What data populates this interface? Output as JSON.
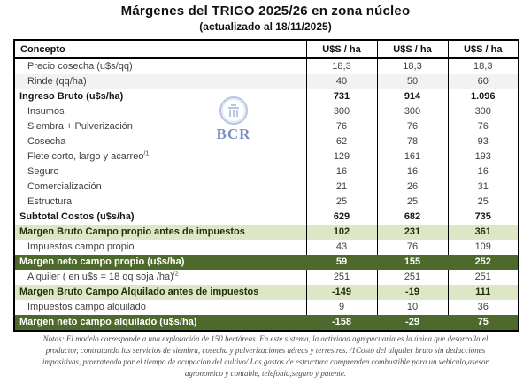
{
  "title": "Márgenes del TRIGO 2025/26 en zona núcleo",
  "subtitle": "(actualizado al 18/11/2025)",
  "watermark": {
    "text": "BCR"
  },
  "colors": {
    "dark_green_row": "#4e692c",
    "light_green_row": "#dde7c6",
    "shaded_row": "#f2f2f2",
    "watermark_blue": "#33549c"
  },
  "table": {
    "header": {
      "concept": "Concepto",
      "cols": [
        "U$S / ha",
        "U$S / ha",
        "U$S / ha"
      ]
    },
    "rows": [
      {
        "label": "Precio cosecha (u$s/qq)",
        "values": [
          "18,3",
          "18,3",
          "18,3"
        ],
        "style": "normal",
        "indent": true
      },
      {
        "label": "Rinde (qq/ha)",
        "values": [
          "40",
          "50",
          "60"
        ],
        "style": "shaded",
        "indent": true
      },
      {
        "label": "Ingreso Bruto (u$s/ha)",
        "values": [
          "731",
          "914",
          "1.096"
        ],
        "style": "bold",
        "indent": false
      },
      {
        "label": "Insumos",
        "values": [
          "300",
          "300",
          "300"
        ],
        "style": "normal",
        "indent": true
      },
      {
        "label": "Siembra + Pulverización",
        "values": [
          "76",
          "76",
          "76"
        ],
        "style": "normal",
        "indent": true
      },
      {
        "label": "Cosecha",
        "values": [
          "62",
          "78",
          "93"
        ],
        "style": "normal",
        "indent": true
      },
      {
        "label": "Flete corto, largo y acarreo",
        "sup": "/1",
        "values": [
          "129",
          "161",
          "193"
        ],
        "style": "normal",
        "indent": true
      },
      {
        "label": "Seguro",
        "values": [
          "16",
          "16",
          "16"
        ],
        "style": "normal",
        "indent": true
      },
      {
        "label": "Comercialización",
        "values": [
          "21",
          "26",
          "31"
        ],
        "style": "normal",
        "indent": true
      },
      {
        "label": "Estructura",
        "values": [
          "25",
          "25",
          "25"
        ],
        "style": "normal",
        "indent": true
      },
      {
        "label": "Subtotal Costos (u$s/ha)",
        "values": [
          "629",
          "682",
          "735"
        ],
        "style": "bold",
        "indent": false
      },
      {
        "label": "Margen Bruto Campo propio antes de impuestos",
        "values": [
          "102",
          "231",
          "361"
        ],
        "style": "light-green",
        "indent": false
      },
      {
        "label": "Impuestos campo propio",
        "values": [
          "43",
          "76",
          "109"
        ],
        "style": "normal",
        "indent": true
      },
      {
        "label": "Margen neto campo propio (u$s/ha)",
        "values": [
          "59",
          "155",
          "252"
        ],
        "style": "dark-green",
        "indent": false
      },
      {
        "label": "Alquiler ( en u$s = 18 qq soja /ha)",
        "sup": "/2",
        "values": [
          "251",
          "251",
          "251"
        ],
        "style": "normal",
        "indent": true
      },
      {
        "label": "Margen Bruto Campo Alquilado antes de impuestos",
        "values": [
          "-149",
          "-19",
          "111"
        ],
        "style": "light-green",
        "indent": false
      },
      {
        "label": "Impuestos campo alquilado",
        "values": [
          "9",
          "10",
          "36"
        ],
        "style": "normal",
        "indent": true
      },
      {
        "label": "Margen neto campo alquilado (u$s/ha)",
        "values": [
          "-158",
          "-29",
          "75"
        ],
        "style": "dark-green",
        "indent": false
      }
    ]
  },
  "notes": {
    "lines": [
      "Notas: El modelo corresponde a una explotación de 150 hectáreas. En este sistema, la actividad agropecuaria es la única que desarrolla el",
      "productor, contratando los servicios de siembra, cosecha y pulverizaciones aéreas y terrestres. /1Costo del alquiler bruto sin deducciones",
      "impositivas, prorrateado por el tiempo de ocupacion del cultivo/ Los gastos de estructura comprenden combustible para un vehiculo,asesor",
      "agronomico y contable, telefonia,seguro y patente."
    ]
  }
}
